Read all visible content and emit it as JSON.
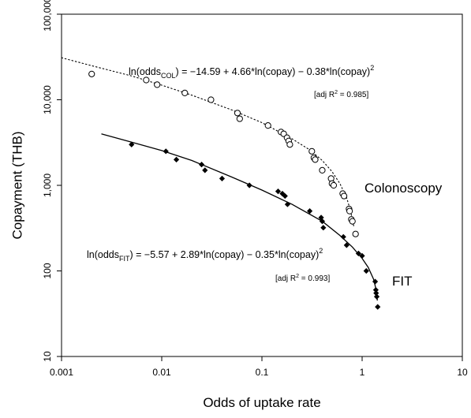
{
  "chart_data": {
    "type": "scatter",
    "xlabel": "Odds of uptake rate",
    "ylabel": "Copayment (THB)",
    "xscale": "log",
    "yscale": "log",
    "xlim": [
      0.001,
      10
    ],
    "ylim": [
      10,
      100000
    ],
    "grid": false,
    "legend": "none",
    "x_ticks": [
      {
        "value": 0.001,
        "label": "0.001"
      },
      {
        "value": 0.01,
        "label": "0.01"
      },
      {
        "value": 0.1,
        "label": "0.1"
      },
      {
        "value": 1,
        "label": "1"
      },
      {
        "value": 10,
        "label": "10"
      }
    ],
    "y_ticks": [
      {
        "value": 10,
        "label": "10"
      },
      {
        "value": 100,
        "label": "100"
      },
      {
        "value": 1000,
        "label": "1,000"
      },
      {
        "value": 10000,
        "label": "10,000"
      },
      {
        "value": 100000,
        "label": "100,000"
      }
    ],
    "series": [
      {
        "name": "Colonoscopy",
        "marker": "open-circle",
        "color": "#000000",
        "equation": {
          "prefix": "ln(odds",
          "subscript": "COL",
          "body": ") = −14.59  + 4.66*ln(copay) − 0.38*ln(copay)",
          "superscript": "2"
        },
        "r2": {
          "prefix": "[adj R",
          "superscript": "2",
          "suffix": " = 0.985]"
        },
        "points": [
          {
            "x": 0.002,
            "y": 20000
          },
          {
            "x": 0.007,
            "y": 17000
          },
          {
            "x": 0.009,
            "y": 15000
          },
          {
            "x": 0.017,
            "y": 12000
          },
          {
            "x": 0.031,
            "y": 10000
          },
          {
            "x": 0.057,
            "y": 7000
          },
          {
            "x": 0.06,
            "y": 6000
          },
          {
            "x": 0.115,
            "y": 5000
          },
          {
            "x": 0.155,
            "y": 4200
          },
          {
            "x": 0.165,
            "y": 4000
          },
          {
            "x": 0.178,
            "y": 3600
          },
          {
            "x": 0.185,
            "y": 3300
          },
          {
            "x": 0.19,
            "y": 3000
          },
          {
            "x": 0.315,
            "y": 2500
          },
          {
            "x": 0.33,
            "y": 2100
          },
          {
            "x": 0.34,
            "y": 2000
          },
          {
            "x": 0.4,
            "y": 1500
          },
          {
            "x": 0.49,
            "y": 1200
          },
          {
            "x": 0.5,
            "y": 1050
          },
          {
            "x": 0.52,
            "y": 1000
          },
          {
            "x": 0.64,
            "y": 800
          },
          {
            "x": 0.66,
            "y": 750
          },
          {
            "x": 0.74,
            "y": 530
          },
          {
            "x": 0.75,
            "y": 500
          },
          {
            "x": 0.78,
            "y": 400
          },
          {
            "x": 0.8,
            "y": 380
          },
          {
            "x": 0.86,
            "y": 270
          }
        ],
        "fit": [
          {
            "x": 0.001,
            "y": 31000
          },
          {
            "x": 0.002,
            "y": 25000
          },
          {
            "x": 0.005,
            "y": 19000
          },
          {
            "x": 0.01,
            "y": 14800
          },
          {
            "x": 0.02,
            "y": 11300
          },
          {
            "x": 0.05,
            "y": 7600
          },
          {
            "x": 0.1,
            "y": 5400
          },
          {
            "x": 0.2,
            "y": 3500
          },
          {
            "x": 0.3,
            "y": 2600
          },
          {
            "x": 0.4,
            "y": 1950
          },
          {
            "x": 0.5,
            "y": 1450
          },
          {
            "x": 0.6,
            "y": 1050
          },
          {
            "x": 0.7,
            "y": 720
          },
          {
            "x": 0.76,
            "y": 520
          },
          {
            "x": 0.8,
            "y": 400
          },
          {
            "x": 0.83,
            "y": 320
          }
        ]
      },
      {
        "name": "FIT",
        "marker": "filled-diamond",
        "color": "#000000",
        "equation": {
          "prefix": "ln(odds",
          "subscript": "FIT",
          "body": ") = −5.57  + 2.89*ln(copay) − 0.35*ln(copay)",
          "superscript": "2"
        },
        "r2": {
          "prefix": "[adj R",
          "superscript": "2",
          "suffix": " = 0.993]"
        },
        "points": [
          {
            "x": 0.005,
            "y": 3000
          },
          {
            "x": 0.011,
            "y": 2500
          },
          {
            "x": 0.014,
            "y": 2000
          },
          {
            "x": 0.025,
            "y": 1750
          },
          {
            "x": 0.027,
            "y": 1500
          },
          {
            "x": 0.04,
            "y": 1200
          },
          {
            "x": 0.075,
            "y": 1000
          },
          {
            "x": 0.145,
            "y": 850
          },
          {
            "x": 0.16,
            "y": 800
          },
          {
            "x": 0.17,
            "y": 750
          },
          {
            "x": 0.18,
            "y": 600
          },
          {
            "x": 0.3,
            "y": 500
          },
          {
            "x": 0.39,
            "y": 420
          },
          {
            "x": 0.4,
            "y": 380
          },
          {
            "x": 0.41,
            "y": 320
          },
          {
            "x": 0.65,
            "y": 250
          },
          {
            "x": 0.7,
            "y": 200
          },
          {
            "x": 0.92,
            "y": 160
          },
          {
            "x": 1.0,
            "y": 150
          },
          {
            "x": 1.1,
            "y": 100
          },
          {
            "x": 1.35,
            "y": 75
          },
          {
            "x": 1.37,
            "y": 60
          },
          {
            "x": 1.38,
            "y": 55
          },
          {
            "x": 1.4,
            "y": 50
          },
          {
            "x": 1.43,
            "y": 38
          }
        ],
        "fit": [
          {
            "x": 0.0025,
            "y": 4000
          },
          {
            "x": 0.005,
            "y": 3200
          },
          {
            "x": 0.01,
            "y": 2550
          },
          {
            "x": 0.02,
            "y": 1950
          },
          {
            "x": 0.05,
            "y": 1250
          },
          {
            "x": 0.1,
            "y": 880
          },
          {
            "x": 0.2,
            "y": 600
          },
          {
            "x": 0.4,
            "y": 380
          },
          {
            "x": 0.6,
            "y": 260
          },
          {
            "x": 0.8,
            "y": 190
          },
          {
            "x": 1.0,
            "y": 140
          },
          {
            "x": 1.15,
            "y": 110
          },
          {
            "x": 1.3,
            "y": 80
          },
          {
            "x": 1.38,
            "y": 60
          },
          {
            "x": 1.42,
            "y": 45
          }
        ]
      }
    ]
  }
}
